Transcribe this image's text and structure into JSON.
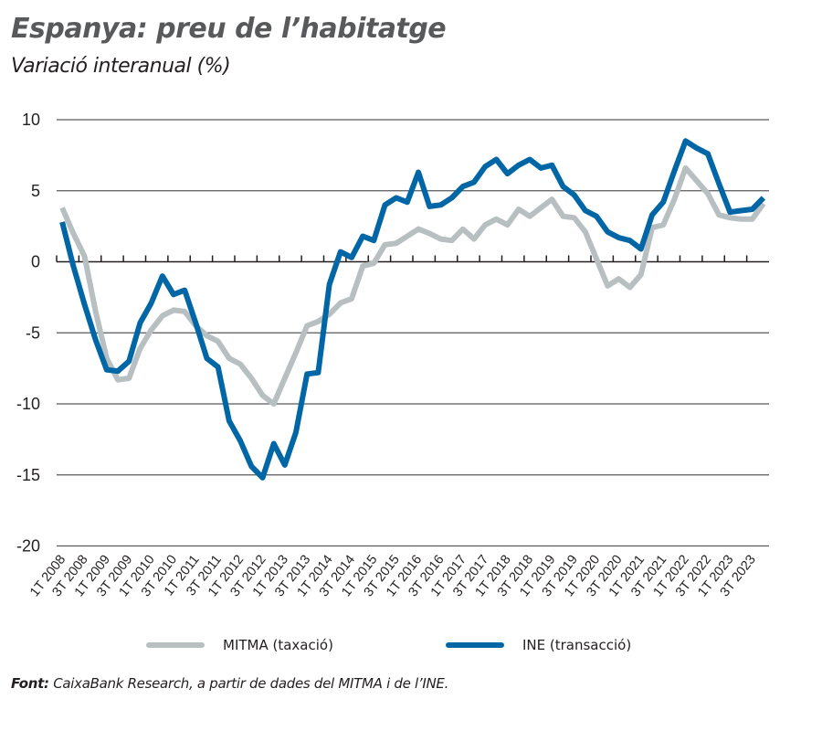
{
  "chart_data": {
    "type": "line",
    "title": "Espanya: preu de l’habitatge",
    "subtitle": "Variació interanual (%)",
    "xlabel": "",
    "ylabel": "",
    "ylim": [
      -20,
      10
    ],
    "yticks": [
      10,
      5,
      0,
      -5,
      -10,
      -15,
      -20
    ],
    "grid": true,
    "legend_position": "bottom",
    "x": [
      "1T 2008",
      "2T 2008",
      "3T 2008",
      "4T 2008",
      "1T 2009",
      "2T 2009",
      "3T 2009",
      "4T 2009",
      "1T 2010",
      "2T 2010",
      "3T 2010",
      "4T 2010",
      "1T 2011",
      "2T 2011",
      "3T 2011",
      "4T 2011",
      "1T 2012",
      "2T 2012",
      "3T 2012",
      "4T 2012",
      "1T 2013",
      "2T 2013",
      "3T 2013",
      "4T 2013",
      "1T 2014",
      "2T 2014",
      "3T 2014",
      "4T 2014",
      "1T 2015",
      "2T 2015",
      "3T 2015",
      "4T 2015",
      "1T 2016",
      "2T 2016",
      "3T 2016",
      "4T 2016",
      "1T 2017",
      "2T 2017",
      "3T 2017",
      "4T 2017",
      "1T 2018",
      "2T 2018",
      "3T 2018",
      "4T 2018",
      "1T 2019",
      "2T 2019",
      "3T 2019",
      "4T 2019",
      "1T 2020",
      "2T 2020",
      "3T 2020",
      "4T 2020",
      "1T 2021",
      "2T 2021",
      "3T 2021",
      "4T 2021",
      "1T 2022",
      "2T 2022",
      "3T 2022",
      "4T 2022",
      "1T 2023",
      "2T 2023",
      "3T 2023",
      "4T 2023"
    ],
    "tick_labels": [
      "1T 2008",
      "3T 2008",
      "1T 2009",
      "3T 2009",
      "1T 2010",
      "3T 2010",
      "1T 2011",
      "3T 2011",
      "1T 2012",
      "3T 2012",
      "1T 2013",
      "3T 2013",
      "1T 2014",
      "3T 2014",
      "1T 2015",
      "3T 2015",
      "1T 2016",
      "3T 2016",
      "1T 2017",
      "3T 2017",
      "1T 2018",
      "3T 2018",
      "1T 2019",
      "3T 2019",
      "1T 2020",
      "3T 2020",
      "1T 2021",
      "3T 2021",
      "1T 2022",
      "3T 2022",
      "1T 2023",
      "3T 2023"
    ],
    "series": [
      {
        "name": "MITMA (taxació)",
        "color": "#b7bfc1",
        "values": [
          3.8,
          2.0,
          0.4,
          -3.5,
          -6.8,
          -8.3,
          -8.2,
          -6.1,
          -4.8,
          -3.8,
          -3.4,
          -3.5,
          -4.5,
          -5.2,
          -5.6,
          -6.8,
          -7.2,
          -8.2,
          -9.4,
          -10.0,
          -8.2,
          -6.4,
          -4.5,
          -4.2,
          -3.7,
          -2.9,
          -2.6,
          -0.3,
          -0.1,
          1.2,
          1.3,
          1.8,
          2.3,
          2.0,
          1.6,
          1.5,
          2.3,
          1.6,
          2.6,
          3.0,
          2.6,
          3.7,
          3.2,
          3.8,
          4.4,
          3.2,
          3.1,
          2.1,
          0.2,
          -1.7,
          -1.2,
          -1.8,
          -0.9,
          2.4,
          2.6,
          4.4,
          6.6,
          5.7,
          4.8,
          3.3,
          3.1,
          3.0,
          3.0,
          4.1
        ]
      },
      {
        "name": "INE (transacció)",
        "color": "#0066a6",
        "values": [
          2.8,
          -0.3,
          -3.0,
          -5.5,
          -7.6,
          -7.7,
          -7.0,
          -4.3,
          -2.9,
          -1.0,
          -2.3,
          -2.0,
          -4.3,
          -6.8,
          -7.4,
          -11.2,
          -12.6,
          -14.4,
          -15.2,
          -12.8,
          -14.3,
          -12.0,
          -7.9,
          -7.8,
          -1.6,
          0.7,
          0.3,
          1.8,
          1.5,
          4.0,
          4.5,
          4.2,
          6.3,
          3.9,
          4.0,
          4.5,
          5.3,
          5.6,
          6.7,
          7.2,
          6.2,
          6.8,
          7.2,
          6.6,
          6.8,
          5.3,
          4.7,
          3.6,
          3.2,
          2.1,
          1.7,
          1.5,
          0.9,
          3.3,
          4.2,
          6.4,
          8.5,
          8.0,
          7.6,
          5.5,
          3.5,
          3.6,
          3.7,
          4.5
        ]
      }
    ]
  },
  "legend": {
    "items": [
      {
        "label": "MITMA (taxació)",
        "color": "#b7bfc1"
      },
      {
        "label": "INE (transacció)",
        "color": "#0066a6"
      }
    ]
  },
  "source": {
    "label": "Font:",
    "text": " CaixaBank Research, a partir de dades del MITMA i de l’INE."
  }
}
